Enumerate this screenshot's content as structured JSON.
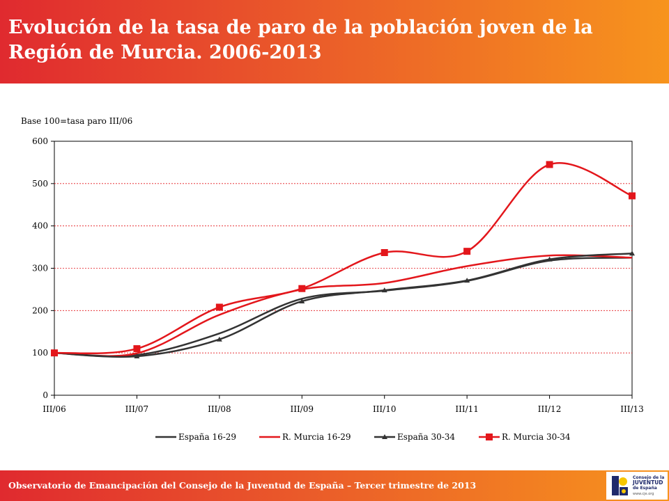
{
  "header": {
    "title": "Evolución de la tasa de paro de la población joven de la Región de Murcia. 2006-2013"
  },
  "footer": {
    "text": "Observatorio de Emancipación del Consejo de la Juventud de España – Tercer trimestre de 2013"
  },
  "logo": {
    "line1": "Consejo de la",
    "line2": "JUVENTUD",
    "line3": "de España",
    "url": "www.cje.org"
  },
  "colors": {
    "header_gradient_start": "#e02a2f",
    "header_gradient_end": "#f7941d",
    "espana": "#333333",
    "murcia": "#e3161b",
    "gridline": "#e3161b"
  },
  "chart_data": {
    "type": "line",
    "title": "",
    "ylabel": "Base 100=tasa paro III/06",
    "xlabel": "",
    "categories": [
      "III/06",
      "III/07",
      "III/08",
      "III/09",
      "III/10",
      "III/11",
      "III/12",
      "III/13"
    ],
    "yticks": [
      "0",
      "100",
      "200",
      "300",
      "400",
      "500",
      "600"
    ],
    "ylim": [
      0,
      600
    ],
    "grid": true,
    "legend_position": "bottom",
    "series": [
      {
        "name": "España 16-29",
        "color": "#333333",
        "marker": "none",
        "values": [
          100,
          95,
          146,
          228,
          247,
          270,
          318,
          325
        ]
      },
      {
        "name": "R. Murcia 16-29",
        "color": "#e3161b",
        "marker": "none",
        "values": [
          100,
          99,
          190,
          250,
          265,
          305,
          330,
          325
        ]
      },
      {
        "name": "España 30-34",
        "color": "#333333",
        "marker": "triangle",
        "values": [
          100,
          92,
          132,
          222,
          248,
          271,
          321,
          335
        ]
      },
      {
        "name": "R. Murcia 30-34",
        "color": "#e3161b",
        "marker": "square",
        "values": [
          100,
          110,
          208,
          252,
          337,
          340,
          545,
          471
        ]
      }
    ]
  }
}
